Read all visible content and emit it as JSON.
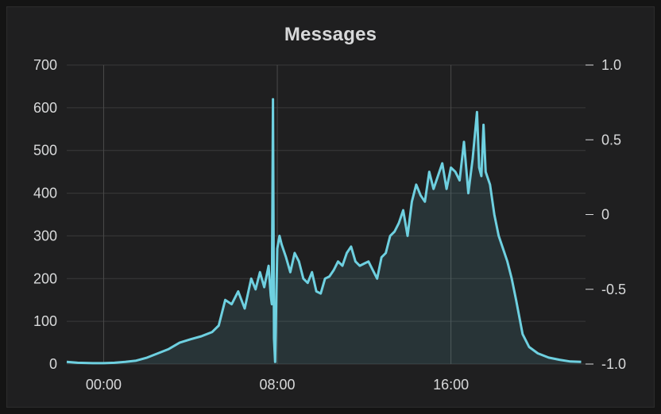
{
  "chart_data": {
    "type": "area",
    "title": "Messages",
    "x_ticks": [
      "00:00",
      "08:00",
      "16:00"
    ],
    "y_ticks_left": [
      0,
      100,
      200,
      300,
      400,
      500,
      600,
      700
    ],
    "y_ticks_right": [
      "-1.0",
      "-0.5",
      "0",
      "0.5",
      "1.0"
    ],
    "ylim": [
      0,
      700
    ],
    "ylim_right": [
      -1.0,
      1.0
    ],
    "xlim_hours": [
      -1.7,
      22.2
    ],
    "grid": true,
    "series": [
      {
        "color": "#6ed0e0",
        "x_hours": [
          -1.7,
          -1.2,
          -0.5,
          0,
          0.5,
          1,
          1.5,
          2,
          2.5,
          3,
          3.5,
          4,
          4.5,
          5,
          5.3,
          5.6,
          5.9,
          6.2,
          6.5,
          6.8,
          7.0,
          7.2,
          7.4,
          7.6,
          7.7,
          7.75,
          7.8,
          7.85,
          7.9,
          8.0,
          8.1,
          8.2,
          8.4,
          8.6,
          8.8,
          9.0,
          9.2,
          9.4,
          9.6,
          9.8,
          10.0,
          10.2,
          10.4,
          10.6,
          10.8,
          11.0,
          11.2,
          11.4,
          11.6,
          11.8,
          12.0,
          12.2,
          12.4,
          12.6,
          12.8,
          13.0,
          13.2,
          13.4,
          13.6,
          13.8,
          14.0,
          14.2,
          14.4,
          14.6,
          14.8,
          15.0,
          15.2,
          15.4,
          15.6,
          15.8,
          16.0,
          16.2,
          16.4,
          16.6,
          16.8,
          17.0,
          17.2,
          17.3,
          17.4,
          17.5,
          17.6,
          17.8,
          18.0,
          18.2,
          18.4,
          18.6,
          18.8,
          19.0,
          19.3,
          19.6,
          20.0,
          20.5,
          21.0,
          21.5,
          22.0
        ],
        "values": [
          5,
          3,
          2,
          2,
          3,
          5,
          8,
          15,
          25,
          35,
          50,
          58,
          65,
          75,
          90,
          150,
          140,
          170,
          130,
          200,
          175,
          215,
          180,
          230,
          160,
          140,
          620,
          60,
          5,
          270,
          300,
          280,
          250,
          215,
          260,
          240,
          200,
          190,
          215,
          170,
          165,
          200,
          205,
          220,
          240,
          230,
          260,
          275,
          240,
          230,
          235,
          240,
          220,
          200,
          250,
          260,
          300,
          310,
          330,
          360,
          300,
          380,
          420,
          395,
          380,
          450,
          410,
          440,
          470,
          410,
          460,
          450,
          430,
          520,
          400,
          480,
          590,
          460,
          440,
          560,
          450,
          420,
          350,
          300,
          270,
          240,
          200,
          150,
          70,
          40,
          25,
          15,
          10,
          6,
          5
        ]
      }
    ]
  }
}
